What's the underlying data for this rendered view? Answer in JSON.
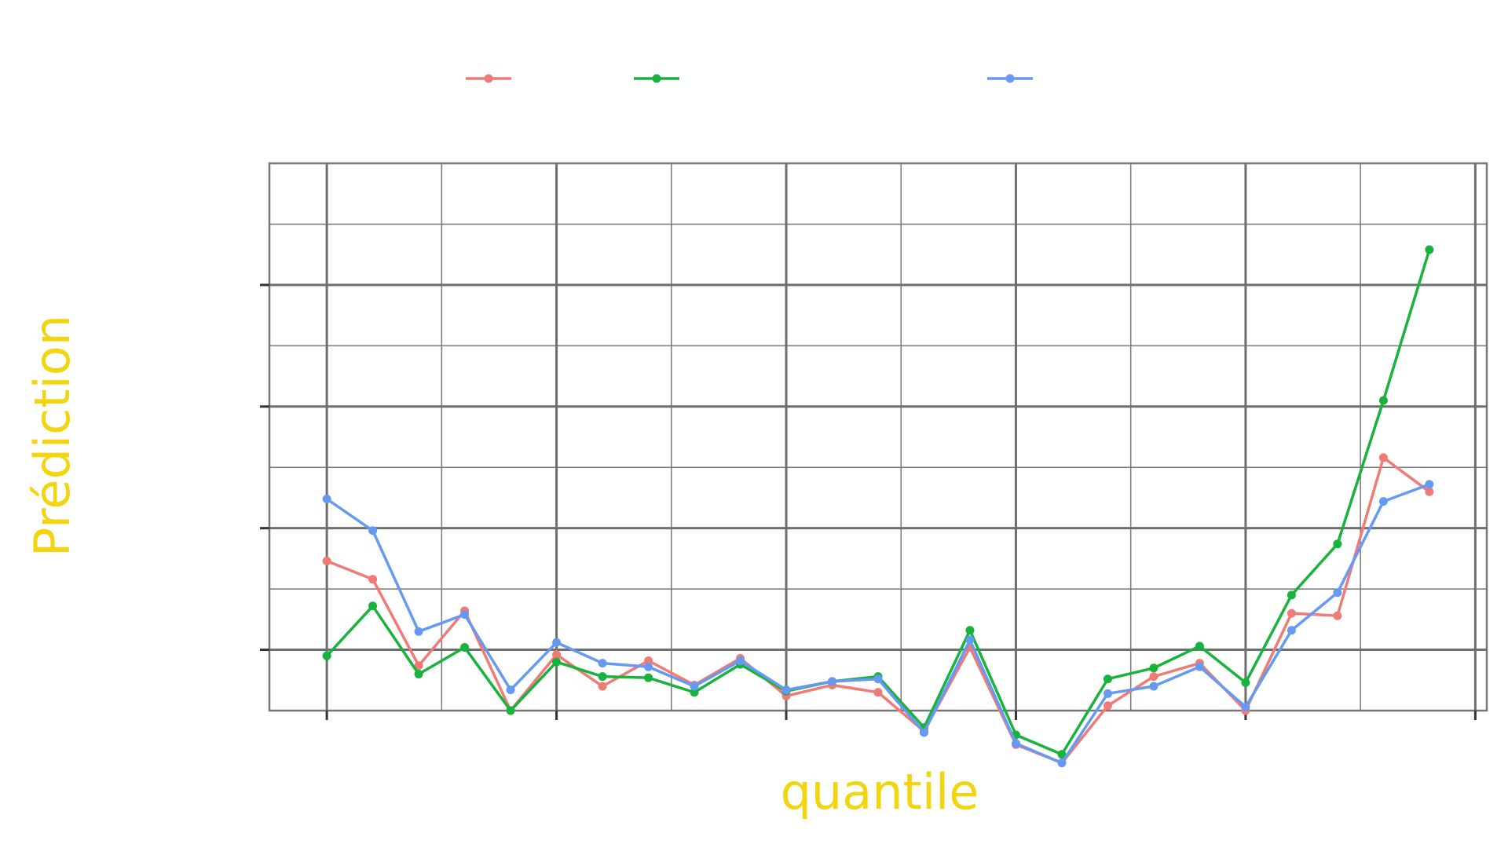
{
  "chart_data": {
    "type": "line",
    "xlabel": "quantile",
    "ylabel": "Prédiction",
    "xlim": [
      -0.025,
      0.505
    ],
    "ylim": [
      0.5,
      5.0
    ],
    "x_ticks": [
      0.0,
      0.1,
      0.2,
      0.3,
      0.4,
      0.5
    ],
    "y_ticks": [
      1,
      2,
      3,
      4
    ],
    "grid": true,
    "legend_position": "top",
    "x": [
      0.0,
      0.02,
      0.04,
      0.06,
      0.08,
      0.1,
      0.12,
      0.14,
      0.16,
      0.18,
      0.2,
      0.22,
      0.24,
      0.26,
      0.28,
      0.3,
      0.32,
      0.34,
      0.36,
      0.38,
      0.4,
      0.42,
      0.44,
      0.46,
      0.48
    ],
    "series": [
      {
        "color": "#f07a75",
        "values": [
          1.73,
          1.58,
          0.87,
          1.32,
          0.5,
          0.96,
          0.7,
          0.91,
          0.71,
          0.93,
          0.62,
          0.71,
          0.65,
          0.33,
          1.02,
          0.22,
          0.07,
          0.54,
          0.78,
          0.89,
          0.5,
          1.3,
          1.28,
          2.58,
          2.3
        ]
      },
      {
        "color": "#17b33c",
        "values": [
          0.95,
          1.36,
          0.8,
          1.02,
          0.5,
          0.9,
          0.78,
          0.77,
          0.65,
          0.88,
          0.66,
          0.74,
          0.78,
          0.36,
          1.16,
          0.3,
          0.14,
          0.76,
          0.85,
          1.03,
          0.73,
          1.45,
          1.87,
          3.05,
          4.29
        ]
      },
      {
        "color": "#6699f2",
        "values": [
          2.24,
          1.98,
          1.15,
          1.29,
          0.67,
          1.06,
          0.89,
          0.86,
          0.7,
          0.91,
          0.67,
          0.74,
          0.76,
          0.32,
          1.08,
          0.23,
          0.07,
          0.64,
          0.7,
          0.86,
          0.53,
          1.16,
          1.47,
          2.22,
          2.36
        ]
      }
    ]
  }
}
